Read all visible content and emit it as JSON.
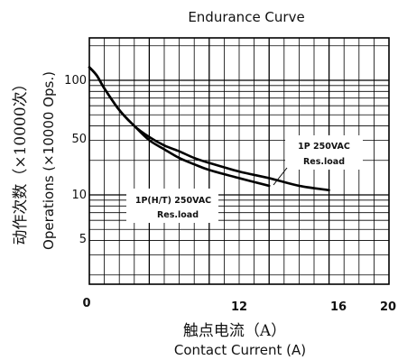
{
  "chart_data": {
    "type": "line",
    "title": "Endurance Curve",
    "xlabel": "Contact Current (A)",
    "xlabel_cn": "触点电流（A）",
    "ylabel": "Operations (×10000 Ops.)",
    "ylabel_cn": "动作次数（×10000次）",
    "x_ticks": [
      "0",
      "12",
      "16",
      "20"
    ],
    "y_ticks": [
      "100",
      "50",
      "10",
      "5"
    ],
    "xlim": [
      0,
      20
    ],
    "y_scale": "log",
    "grid": true,
    "series": [
      {
        "name": "1P 250VAC Res.load",
        "x": [
          0,
          0.5,
          1,
          2,
          3,
          4,
          5,
          6,
          7,
          8,
          10,
          12,
          14,
          16
        ],
        "y": [
          130,
          110,
          85,
          55,
          40,
          32,
          27,
          24,
          21,
          19,
          16,
          14,
          12,
          11
        ]
      },
      {
        "name": "1P(H/T) 250VAC Res.load",
        "x": [
          0,
          0.5,
          1,
          2,
          3,
          4,
          5,
          6,
          7,
          8,
          10,
          12
        ],
        "y": [
          130,
          110,
          85,
          55,
          40,
          30,
          25,
          21,
          18.5,
          16.5,
          14,
          12
        ]
      }
    ],
    "annotations": [
      {
        "line1": "1P 250VAC",
        "line2": "Res.load"
      },
      {
        "line1": "1P(H/T)  250VAC",
        "line2": "Res.load"
      }
    ]
  }
}
